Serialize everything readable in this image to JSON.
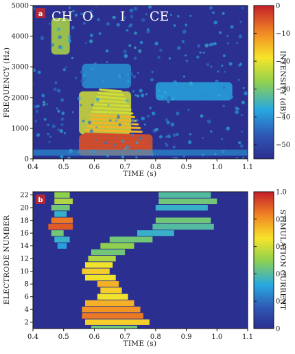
{
  "chart_data": [
    {
      "panel_label": "a",
      "type": "heatmap",
      "kind": "spectrogram",
      "xlabel": "TIME (s)",
      "ylabel": "FREQUENCY (Hz)",
      "xlim": [
        0.4,
        1.1
      ],
      "ylim": [
        0,
        5000
      ],
      "x_ticks": [
        "0.4",
        "0.5",
        "0.6",
        "0.7",
        "0.8",
        "0.9",
        "1.0",
        "1.1"
      ],
      "y_ticks": [
        "0",
        "1000",
        "2000",
        "3000",
        "4000",
        "5000"
      ],
      "colorbar": {
        "label": "INTENSITY (dB)",
        "range": [
          -55,
          0
        ],
        "ticks": [
          "0",
          "−10",
          "−20",
          "−30",
          "−40",
          "−50"
        ]
      },
      "annotations": [
        "CH",
        "O",
        "I",
        "CE"
      ],
      "regions": [
        {
          "t": [
            0.46,
            0.52
          ],
          "f": [
            3400,
            4600
          ],
          "level": -25
        },
        {
          "t": [
            0.55,
            0.79
          ],
          "f": [
            100,
            800
          ],
          "level": -5
        },
        {
          "t": [
            0.55,
            0.72
          ],
          "f": [
            800,
            2200
          ],
          "level": -22
        },
        {
          "t": [
            0.8,
            1.05
          ],
          "f": [
            1900,
            2500
          ],
          "level": -38
        },
        {
          "t": [
            0.56,
            0.72
          ],
          "f": [
            2300,
            3100
          ],
          "level": -40
        }
      ]
    },
    {
      "panel_label": "b",
      "type": "heatmap",
      "kind": "electrodogram",
      "xlabel": "TIME (s)",
      "ylabel": "ELECTRODE NUMBER",
      "xlim": [
        0.4,
        1.1
      ],
      "ylim": [
        1,
        22.5
      ],
      "x_ticks": [
        "0.4",
        "0.5",
        "0.6",
        "0.7",
        "0.8",
        "0.9",
        "1.0",
        "1.1"
      ],
      "y_ticks": [
        "2",
        "4",
        "6",
        "8",
        "10",
        "12",
        "14",
        "16",
        "18",
        "20",
        "22"
      ],
      "colorbar": {
        "label": "STIMULATION CURRENT",
        "range": [
          0,
          1
        ],
        "ticks": [
          "0",
          "0.2",
          "0.4",
          "0.6",
          "0.8",
          "1.0"
        ]
      },
      "segments": [
        {
          "e": 22,
          "t": [
            0.47,
            0.52
          ],
          "v": 0.5
        },
        {
          "e": 22,
          "t": [
            0.81,
            0.98
          ],
          "v": 0.4
        },
        {
          "e": 21,
          "t": [
            0.47,
            0.53
          ],
          "v": 0.55
        },
        {
          "e": 21,
          "t": [
            0.81,
            1.0
          ],
          "v": 0.45
        },
        {
          "e": 20,
          "t": [
            0.46,
            0.52
          ],
          "v": 0.45
        },
        {
          "e": 20,
          "t": [
            0.8,
            0.97
          ],
          "v": 0.35
        },
        {
          "e": 19,
          "t": [
            0.47,
            0.51
          ],
          "v": 0.35
        },
        {
          "e": 18,
          "t": [
            0.46,
            0.53
          ],
          "v": 0.85
        },
        {
          "e": 18,
          "t": [
            0.8,
            0.98
          ],
          "v": 0.45
        },
        {
          "e": 17,
          "t": [
            0.45,
            0.53
          ],
          "v": 0.9
        },
        {
          "e": 17,
          "t": [
            0.79,
            0.99
          ],
          "v": 0.4
        },
        {
          "e": 16,
          "t": [
            0.46,
            0.5
          ],
          "v": 0.45
        },
        {
          "e": 16,
          "t": [
            0.74,
            0.86
          ],
          "v": 0.35
        },
        {
          "e": 15,
          "t": [
            0.47,
            0.52
          ],
          "v": 0.35
        },
        {
          "e": 15,
          "t": [
            0.65,
            0.79
          ],
          "v": 0.45
        },
        {
          "e": 14,
          "t": [
            0.48,
            0.51
          ],
          "v": 0.3
        },
        {
          "e": 14,
          "t": [
            0.62,
            0.73
          ],
          "v": 0.5
        },
        {
          "e": 13,
          "t": [
            0.59,
            0.7
          ],
          "v": 0.45
        },
        {
          "e": 12,
          "t": [
            0.58,
            0.67
          ],
          "v": 0.55
        },
        {
          "e": 11,
          "t": [
            0.57,
            0.66
          ],
          "v": 0.65
        },
        {
          "e": 10,
          "t": [
            0.56,
            0.65
          ],
          "v": 0.7
        },
        {
          "e": 9,
          "t": [
            0.57,
            0.67
          ],
          "v": 0.65
        },
        {
          "e": 8,
          "t": [
            0.61,
            0.68
          ],
          "v": 0.75
        },
        {
          "e": 7,
          "t": [
            0.62,
            0.69
          ],
          "v": 0.7
        },
        {
          "e": 6,
          "t": [
            0.61,
            0.71
          ],
          "v": 0.65
        },
        {
          "e": 5,
          "t": [
            0.57,
            0.73
          ],
          "v": 0.75
        },
        {
          "e": 4,
          "t": [
            0.56,
            0.75
          ],
          "v": 0.8
        },
        {
          "e": 3,
          "t": [
            0.56,
            0.76
          ],
          "v": 0.85
        },
        {
          "e": 2,
          "t": [
            0.57,
            0.78
          ],
          "v": 0.7
        },
        {
          "e": 1,
          "t": [
            0.59,
            0.74
          ],
          "v": 0.45
        }
      ]
    }
  ]
}
